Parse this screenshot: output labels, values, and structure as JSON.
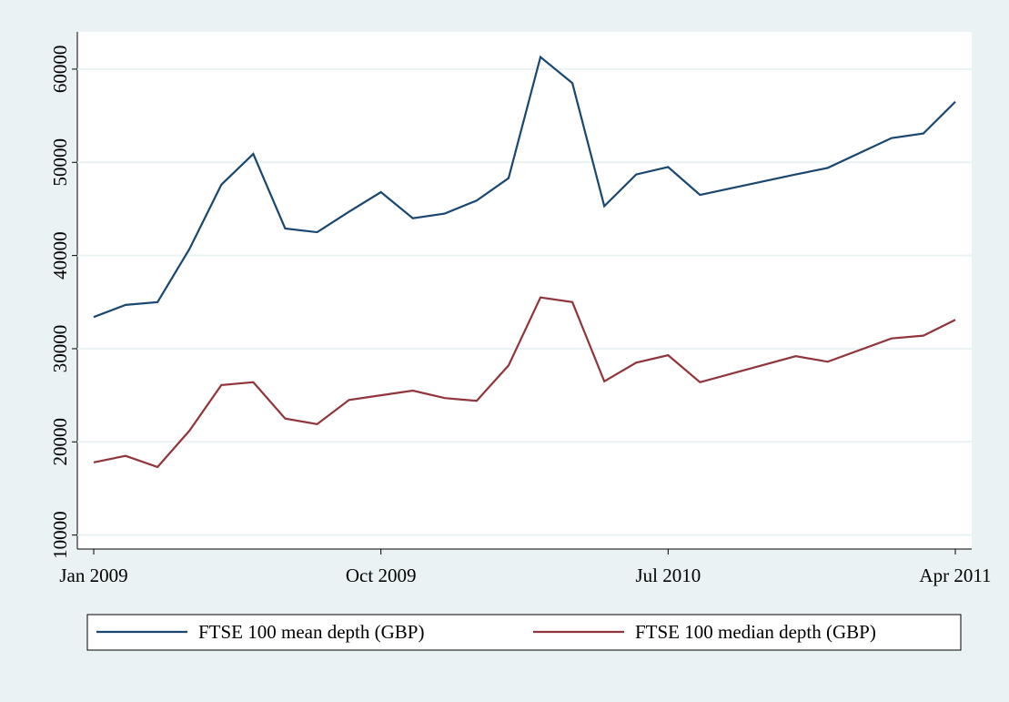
{
  "chart_data": {
    "type": "line",
    "x": [
      "2009-01",
      "2009-02",
      "2009-03",
      "2009-04",
      "2009-05",
      "2009-06",
      "2009-07",
      "2009-08",
      "2009-09",
      "2009-10",
      "2009-11",
      "2009-12",
      "2010-01",
      "2010-02",
      "2010-03",
      "2010-04",
      "2010-05",
      "2010-06",
      "2010-07",
      "2010-08",
      "2010-11",
      "2010-12",
      "2011-02",
      "2011-03",
      "2011-04"
    ],
    "series": [
      {
        "name": "FTSE 100 mean depth (GBP)",
        "color": "#1a476f",
        "values": [
          33400,
          34700,
          35000,
          40700,
          47600,
          50900,
          42900,
          42500,
          44700,
          46800,
          44000,
          44500,
          45900,
          48300,
          61300,
          58500,
          45300,
          48700,
          49500,
          46500,
          48700,
          49400,
          52600,
          53100,
          56500
        ]
      },
      {
        "name": "FTSE 100 median depth (GBP)",
        "color": "#90353b",
        "values": [
          17800,
          18500,
          17300,
          21200,
          26100,
          26400,
          22500,
          21900,
          24500,
          25000,
          25500,
          24700,
          24400,
          28200,
          35500,
          35000,
          26500,
          28500,
          29300,
          26400,
          29200,
          28600,
          31100,
          31400,
          33100
        ]
      }
    ],
    "xlim": [
      "2009-01",
      "2011-04"
    ],
    "xticks": [
      {
        "value": "2009-01",
        "label": "Jan 2009"
      },
      {
        "value": "2009-10",
        "label": "Oct 2009"
      },
      {
        "value": "2010-07",
        "label": "Jul 2010"
      },
      {
        "value": "2011-04",
        "label": "Apr 2011"
      }
    ],
    "ylim": [
      8500,
      64000
    ],
    "yticks": [
      10000,
      20000,
      30000,
      40000,
      50000,
      60000
    ],
    "grid": true,
    "legend": "bottom"
  }
}
